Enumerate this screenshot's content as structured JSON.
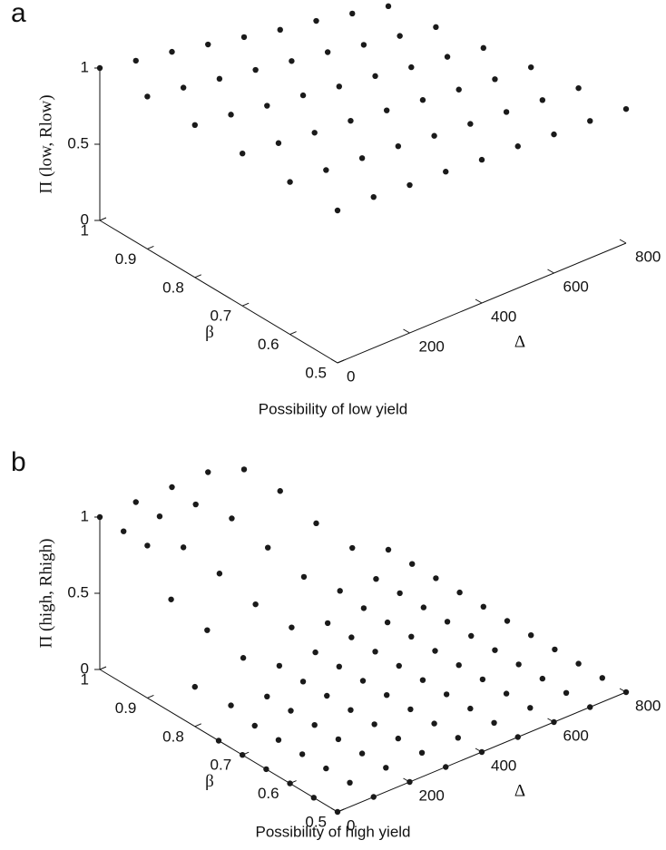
{
  "chart_data": [
    {
      "type": "surface3d",
      "title": "a",
      "xlabel": "Possibility of low yield",
      "zlabel": "Π (low, Rlow)",
      "beta_label": "β",
      "delta_label": "Δ",
      "beta": [
        0.5,
        0.6,
        0.7,
        0.8,
        0.9,
        1
      ],
      "delta": [
        0,
        100,
        200,
        300,
        400,
        500,
        600,
        700,
        800
      ],
      "z": [
        [
          1,
          0.99,
          0.97,
          0.96,
          0.94,
          0.93,
          0.91,
          0.9,
          0.88
        ],
        [
          1,
          0.98,
          0.96,
          0.94,
          0.91,
          0.89,
          0.87,
          0.85,
          0.83
        ],
        [
          1,
          0.97,
          0.94,
          0.92,
          0.89,
          0.86,
          0.83,
          0.8,
          0.78
        ],
        [
          1,
          0.97,
          0.93,
          0.9,
          0.86,
          0.83,
          0.79,
          0.76,
          0.72
        ],
        [
          1,
          0.96,
          0.92,
          0.88,
          0.84,
          0.8,
          0.75,
          0.71,
          0.67
        ],
        [
          1,
          0.95,
          0.91,
          0.86,
          0.81,
          0.76,
          0.72,
          0.67,
          0.62
        ]
      ],
      "color": "#1a1a1a",
      "betalim": [
        0.5,
        1
      ],
      "betaticks": [
        0.5,
        0.6,
        0.7,
        0.8,
        0.9,
        1
      ],
      "deltalim": [
        0,
        800
      ],
      "deltaticks": [
        0,
        200,
        400,
        600,
        800
      ],
      "zlim": [
        0,
        1
      ],
      "zticks": [
        0,
        0.5,
        1
      ]
    },
    {
      "type": "surface3d",
      "title": "b",
      "xlabel": "Possibility of high yield",
      "zlabel": "Π (high, Rhigh)",
      "beta_label": "β",
      "delta_label": "Δ",
      "beta": [
        0.5,
        0.55,
        0.6,
        0.65,
        0.7,
        0.75,
        0.8,
        0.85,
        0.9,
        0.95,
        1
      ],
      "delta": [
        0,
        100,
        200,
        300,
        400,
        500,
        600,
        700,
        800
      ],
      "z": [
        [
          0,
          0,
          0,
          0,
          0,
          0,
          0,
          0,
          0
        ],
        [
          0,
          0,
          0,
          0,
          0,
          0,
          0,
          0,
          0
        ],
        [
          0,
          0,
          0,
          0,
          0,
          0,
          0,
          0,
          0
        ],
        [
          0,
          0,
          0,
          0,
          0,
          0,
          0,
          0,
          0
        ],
        [
          0,
          0,
          0,
          0,
          0,
          0,
          0,
          0,
          0
        ],
        [
          0,
          0,
          0,
          0,
          0,
          0,
          0,
          0,
          0
        ],
        [
          0.26,
          0.04,
          0,
          0,
          0,
          0,
          0,
          0,
          0
        ],
        [
          0.74,
          0.44,
          0.16,
          0.01,
          0,
          0,
          0,
          0,
          0
        ],
        [
          1,
          0.89,
          0.62,
          0.32,
          0.07,
          0,
          0,
          0,
          0
        ],
        [
          1,
          1,
          0.98,
          0.79,
          0.5,
          0.21,
          0.02,
          0,
          0
        ],
        [
          1,
          1,
          1,
          1,
          0.92,
          0.68,
          0.37,
          0.11,
          0
        ]
      ],
      "color": "#1a1a1a",
      "betalim": [
        0.5,
        1
      ],
      "betaticks": [
        0.5,
        0.6,
        0.7,
        0.8,
        0.9,
        1
      ],
      "deltalim": [
        0,
        800
      ],
      "deltaticks": [
        0,
        200,
        400,
        600,
        800
      ],
      "zlim": [
        0,
        1
      ],
      "zticks": [
        0,
        0.5,
        1
      ]
    }
  ]
}
